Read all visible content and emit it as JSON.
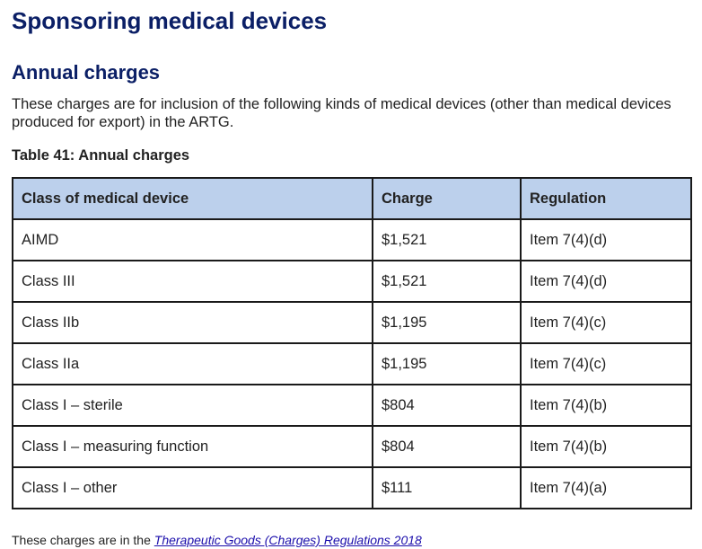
{
  "page_title": "Sponsoring medical devices",
  "section_title": "Annual charges",
  "intro": "These charges are for inclusion of the following kinds of medical devices (other than medical devices produced for export) in the ARTG.",
  "table": {
    "caption": "Table 41: Annual charges",
    "headers": [
      "Class of medical device",
      "Charge",
      "Regulation"
    ],
    "rows": [
      [
        "AIMD",
        "$1,521",
        "Item 7(4)(d)"
      ],
      [
        "Class III",
        "$1,521",
        "Item 7(4)(d)"
      ],
      [
        "Class IIb",
        "$1,195",
        "Item 7(4)(c)"
      ],
      [
        "Class IIa",
        "$1,195",
        "Item 7(4)(c)"
      ],
      [
        "Class I – sterile",
        "$804",
        "Item 7(4)(b)"
      ],
      [
        "Class I – measuring function",
        "$804",
        "Item 7(4)(b)"
      ],
      [
        "Class I – other",
        "$111",
        "Item 7(4)(a)"
      ]
    ]
  },
  "footer": {
    "prefix": "These charges are in the ",
    "link_text": "Therapeutic Goods (Charges) Regulations 2018"
  }
}
